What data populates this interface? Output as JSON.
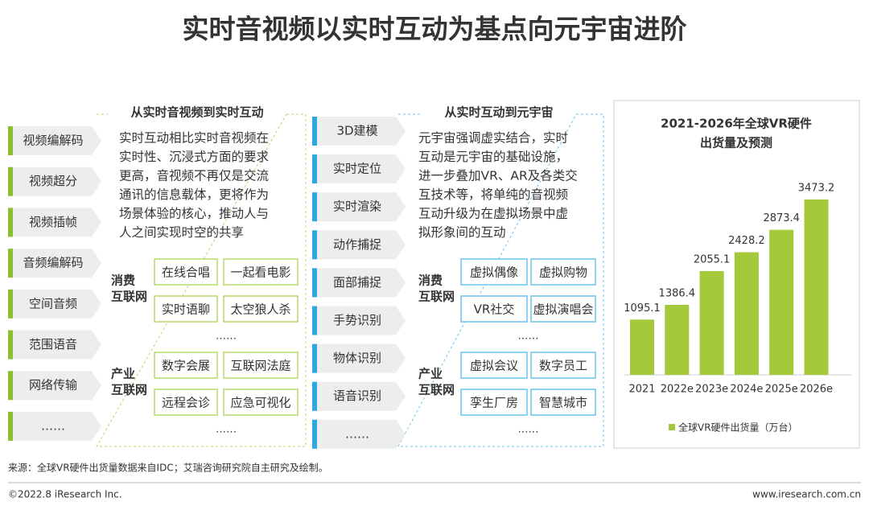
{
  "title": "实时音视频以实时互动为基点向元宇宙进阶",
  "left_panel": {
    "heading": "从实时音视频到实时互动",
    "tags": [
      "视频编解码",
      "视频超分",
      "视频插帧",
      "音频编解码",
      "空间音频",
      "范围语音",
      "网络传输",
      "……"
    ],
    "description": [
      "实时互动相比实时音视频在",
      "实时性、沉浸式方面的要求",
      "更高，音视频不再仅是交流",
      "通讯的信息载体，更将作为",
      "场景体验的核心，推动人与",
      "人之间实现时空的共享"
    ],
    "groups": [
      {
        "label": [
          "消费",
          "互联网"
        ],
        "items": [
          "在线合唱",
          "一起看电影",
          "实时语聊",
          "太空狼人杀"
        ],
        "more": "……"
      },
      {
        "label": [
          "产业",
          "互联网"
        ],
        "items": [
          "数字会展",
          "互联网法庭",
          "远程会诊",
          "应急可视化"
        ],
        "more": "……"
      }
    ]
  },
  "middle_panel": {
    "heading": "从实时互动到元宇宙",
    "tags": [
      "3D建模",
      "实时定位",
      "实时渲染",
      "动作捕捉",
      "面部捕捉",
      "手势识别",
      "物体识别",
      "语音识别",
      "……"
    ],
    "description": [
      "元宇宙强调虚实结合，实时",
      "互动是元宇宙的基础设施，",
      "进一步叠加VR、AR及各类交",
      "互技术等，将单纯的音视频",
      "互动升级为在虚拟场景中虚",
      "拟形象间的互动"
    ],
    "groups": [
      {
        "label": [
          "消费",
          "互联网"
        ],
        "items": [
          "虚拟偶像",
          "虚拟购物",
          "VR社交",
          "虚拟演唱会"
        ],
        "more": "……"
      },
      {
        "label": [
          "产业",
          "互联网"
        ],
        "items": [
          "虚拟会议",
          "数字员工",
          "孪生厂房",
          "智慧城市"
        ],
        "more": "……"
      }
    ]
  },
  "chart_data": {
    "type": "bar",
    "title": [
      "2021-2026年全球VR硬件",
      "出货量及预测"
    ],
    "categories": [
      "2021",
      "2022e",
      "2023e",
      "2024e",
      "2025e",
      "2026e"
    ],
    "series": [
      {
        "name": "全球VR硬件出货量（万台）",
        "color": "#a4c93b",
        "values": [
          1095.1,
          1386.4,
          2055.1,
          2428.2,
          2873.4,
          3473.2
        ]
      }
    ]
  },
  "footer": {
    "source": "来源：全球VR硬件出货量数据来自IDC；艾瑞咨询研究院自主研究及绘制。",
    "copyright": "©2022.8 iResearch Inc.",
    "website": "www.iresearch.com.cn"
  }
}
